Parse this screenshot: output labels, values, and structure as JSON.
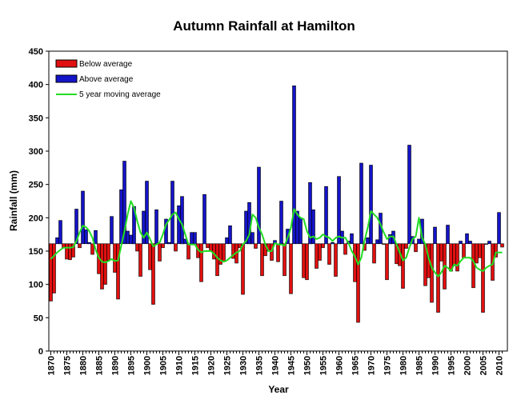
{
  "chart_data": {
    "type": "bar",
    "title": "Autumn Rainfall at Hamilton",
    "xlabel": "Year",
    "ylabel": "Rainfall (mm)",
    "ylim": [
      0,
      450
    ],
    "yticks": [
      "0",
      "50",
      "100",
      "150",
      "200",
      "250",
      "300",
      "350",
      "400",
      "450"
    ],
    "xlim": [
      1870,
      2011
    ],
    "xticks": [
      "1870",
      "1875",
      "1880",
      "1885",
      "1890",
      "1895",
      "1900",
      "1905",
      "1910",
      "1915",
      "1920",
      "1925",
      "1930",
      "1935",
      "1940",
      "1945",
      "1950",
      "1955",
      "1960",
      "1965",
      "1970",
      "1975",
      "1980",
      "1985",
      "1990",
      "1995",
      "2000",
      "2005",
      "2010"
    ],
    "baseline": 161,
    "grid": false,
    "legend_position": "top-left",
    "years": [
      1870,
      1871,
      1872,
      1873,
      1874,
      1875,
      1876,
      1877,
      1878,
      1879,
      1880,
      1881,
      1882,
      1883,
      1884,
      1885,
      1886,
      1887,
      1888,
      1889,
      1890,
      1891,
      1892,
      1893,
      1894,
      1895,
      1896,
      1897,
      1898,
      1899,
      1900,
      1901,
      1902,
      1903,
      1904,
      1905,
      1906,
      1907,
      1908,
      1909,
      1910,
      1911,
      1912,
      1913,
      1914,
      1915,
      1916,
      1917,
      1918,
      1919,
      1920,
      1921,
      1922,
      1923,
      1924,
      1925,
      1926,
      1927,
      1928,
      1929,
      1930,
      1931,
      1932,
      1933,
      1934,
      1935,
      1936,
      1937,
      1938,
      1939,
      1940,
      1941,
      1942,
      1943,
      1944,
      1945,
      1946,
      1947,
      1948,
      1949,
      1950,
      1951,
      1952,
      1953,
      1954,
      1955,
      1956,
      1957,
      1958,
      1959,
      1960,
      1961,
      1962,
      1963,
      1964,
      1965,
      1966,
      1967,
      1968,
      1969,
      1970,
      1971,
      1972,
      1973,
      1974,
      1975,
      1976,
      1977,
      1978,
      1979,
      1980,
      1981,
      1982,
      1983,
      1984,
      1985,
      1986,
      1987,
      1988,
      1989,
      1990,
      1991,
      1992,
      1993,
      1994,
      1995,
      1996,
      1997,
      1998,
      1999,
      2000,
      2001,
      2002,
      2003,
      2004,
      2005,
      2006,
      2007,
      2008,
      2009,
      2010,
      2011
    ],
    "series": [
      {
        "name": "Below average",
        "color": "#e01010",
        "kind": "bar"
      },
      {
        "name": "Above average",
        "color": "#1414c8",
        "kind": "bar"
      },
      {
        "name": "5 year moving average",
        "color": "#22dd22",
        "kind": "line"
      }
    ],
    "values": [
      75,
      87,
      170,
      196,
      155,
      138,
      137,
      141,
      213,
      155,
      240,
      182,
      163,
      145,
      181,
      116,
      93,
      100,
      136,
      202,
      118,
      78,
      242,
      285,
      180,
      174,
      217,
      150,
      112,
      210,
      255,
      122,
      70,
      212,
      135,
      155,
      198,
      163,
      255,
      150,
      218,
      232,
      168,
      138,
      178,
      178,
      140,
      104,
      235,
      155,
      150,
      138,
      113,
      130,
      134,
      170,
      188,
      139,
      132,
      155,
      85,
      210,
      223,
      178,
      154,
      276,
      113,
      143,
      150,
      136,
      166,
      134,
      225,
      113,
      183,
      86,
      398,
      210,
      200,
      110,
      107,
      253,
      212,
      124,
      136,
      155,
      247,
      130,
      163,
      112,
      262,
      180,
      145,
      165,
      176,
      104,
      43,
      282,
      151,
      170,
      279,
      132,
      167,
      207,
      160,
      107,
      175,
      180,
      131,
      128,
      94,
      154,
      309,
      172,
      149,
      168,
      198,
      98,
      110,
      73,
      186,
      58,
      135,
      93,
      189,
      120,
      128,
      120,
      165,
      140,
      176,
      165,
      95,
      132,
      140,
      58,
      160,
      165,
      106,
      141,
      208,
      156
    ],
    "moving_average": [
      138,
      143,
      148,
      152,
      155,
      155,
      155,
      156,
      165,
      178,
      188,
      186,
      180,
      170,
      152,
      140,
      134,
      133,
      135,
      138,
      135,
      136,
      158,
      180,
      205,
      225,
      215,
      195,
      178,
      170,
      178,
      168,
      157,
      160,
      163,
      175,
      190,
      197,
      205,
      208,
      198,
      190,
      175,
      160,
      160,
      160,
      152,
      148,
      150,
      150,
      150,
      146,
      140,
      136,
      134,
      136,
      140,
      144,
      148,
      150,
      160,
      165,
      175,
      205,
      200,
      185,
      175,
      160,
      150,
      150,
      162,
      160,
      160,
      158,
      170,
      185,
      213,
      205,
      200,
      198,
      180,
      170,
      172,
      168,
      170,
      175,
      172,
      170,
      165,
      170,
      172,
      170,
      170,
      162,
      150,
      142,
      130,
      140,
      166,
      185,
      210,
      205,
      200,
      190,
      178,
      168,
      172,
      172,
      160,
      148,
      136,
      140,
      155,
      168,
      172,
      200,
      170,
      160,
      140,
      125,
      118,
      112,
      118,
      128,
      125,
      120,
      130,
      128,
      135,
      140,
      140,
      140,
      135,
      125,
      122,
      120,
      125,
      128,
      130,
      148,
      148,
      148
    ]
  }
}
